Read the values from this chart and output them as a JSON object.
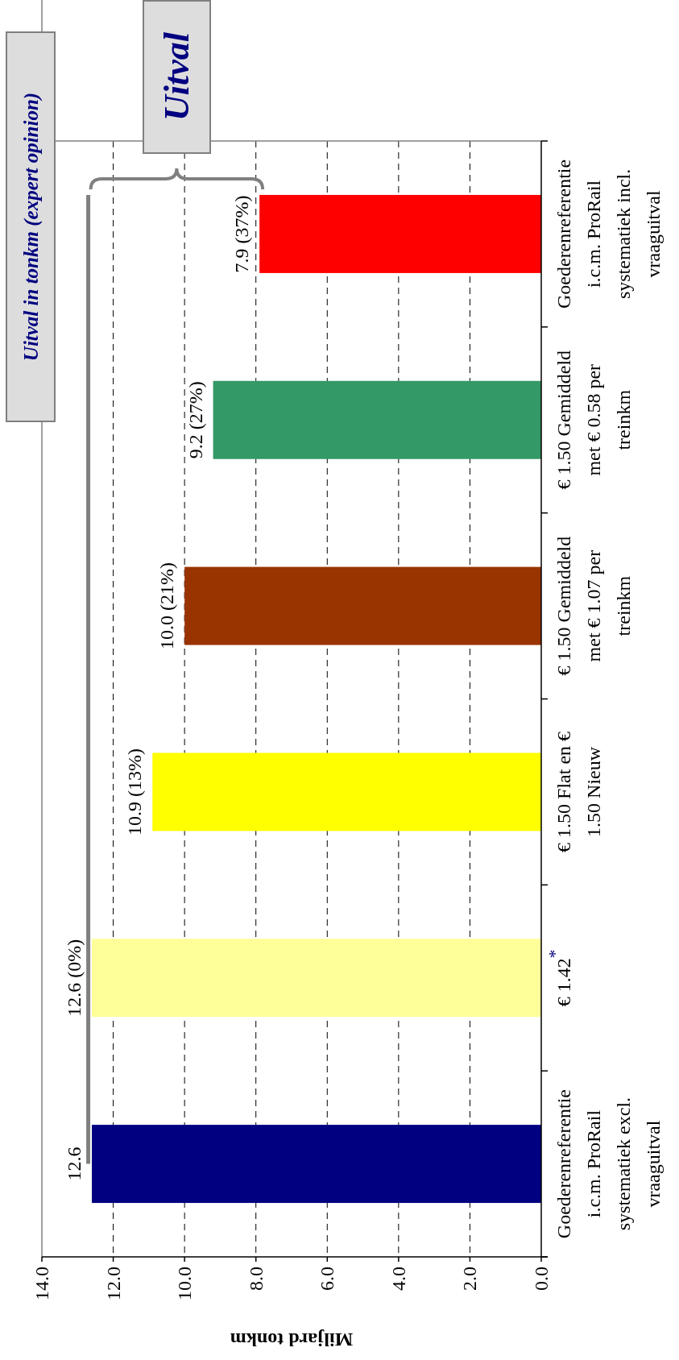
{
  "chart_data": {
    "type": "bar",
    "orientation": "horizontal",
    "categories": [
      "Goederenreferentie i.c.m. ProRail systematiek incl. vraaguitval",
      "€ 1.50 Gemiddeld met € 0.58 per treinkm",
      "€ 1.50 Gemiddeld met € 1.07 per treinkm",
      "€ 1.50 Flat en € 1.50 Nieuw",
      "€ 1.42$^{*}$",
      "Goederenreferentie i.c.m. ProRail systematiek excl. vraaguitval"
    ],
    "values": [
      7.9,
      9.2,
      10.0,
      10.9,
      12.6,
      12.6
    ],
    "colors": [
      "#ff0000",
      "#339966",
      "#993300",
      "#ffff00",
      "#ffff99",
      "#000080"
    ],
    "value_labels": [
      "7.9 (37%)",
      "9.2 (27%)",
      "10.0 (21%)",
      "10.9 (13%)",
      "12.6 (0%)",
      "12.6"
    ],
    "xlabel": "Miljard tonkm",
    "xlim": [
      14,
      0
    ],
    "xticks": [
      {
        "value": 14,
        "label": "14.0"
      },
      {
        "value": 12,
        "label": "12.0"
      },
      {
        "value": 10,
        "label": "10.0"
      },
      {
        "value": 8,
        "label": "8.0"
      },
      {
        "value": 6,
        "label": "6.0"
      },
      {
        "value": 4,
        "label": "4.0"
      },
      {
        "value": 2,
        "label": "2.0"
      },
      {
        "value": 0,
        "label": "0.0"
      }
    ],
    "grid": "x",
    "ref_lines": [
      {
        "axis": "x",
        "value": 12.7,
        "color": "#808080"
      }
    ],
    "annotations": [
      "Uitval in tonkm (expert opinion)",
      "Uitval"
    ]
  }
}
